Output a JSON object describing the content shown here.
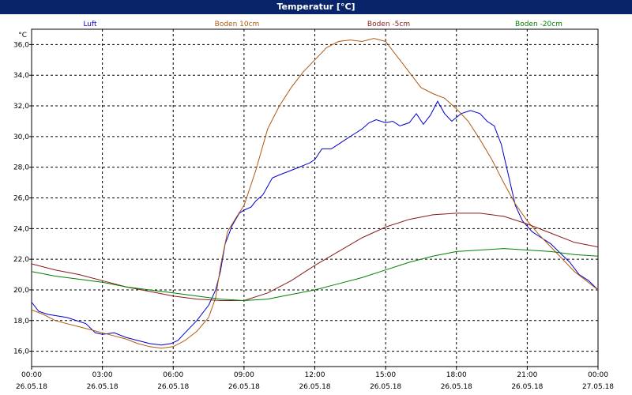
{
  "window": {
    "title": "Temperatur [°C]"
  },
  "chart_data": {
    "type": "line",
    "title": "Temperatur [°C]",
    "yunit": "°C",
    "ylim": [
      15,
      37
    ],
    "yticks": [
      16,
      18,
      20,
      22,
      24,
      26,
      28,
      30,
      32,
      34,
      36
    ],
    "ytick_labels": [
      "16,0",
      "18,0",
      "20,0",
      "22,0",
      "24,0",
      "26,0",
      "28,0",
      "30,0",
      "32,0",
      "34,0",
      "36,0"
    ],
    "xlim": [
      0,
      24
    ],
    "xticks": [
      0,
      3,
      6,
      9,
      12,
      15,
      18,
      21,
      24
    ],
    "xtick_labels": [
      [
        "00:00",
        "26.05.18"
      ],
      [
        "03:00",
        "26.05.18"
      ],
      [
        "06:00",
        "26.05.18"
      ],
      [
        "09:00",
        "26.05.18"
      ],
      [
        "12:00",
        "26.05.18"
      ],
      [
        "15:00",
        "26.05.18"
      ],
      [
        "18:00",
        "26.05.18"
      ],
      [
        "21:00",
        "26.05.18"
      ],
      [
        "00:00",
        "27.05.18"
      ]
    ],
    "grid": true,
    "series": [
      {
        "name": "Luft",
        "color": "#0000cc",
        "points": [
          [
            0,
            19.2
          ],
          [
            0.3,
            18.6
          ],
          [
            0.7,
            18.4
          ],
          [
            1.5,
            18.2
          ],
          [
            2.3,
            17.8
          ],
          [
            2.7,
            17.2
          ],
          [
            3.0,
            17.1
          ],
          [
            3.5,
            17.2
          ],
          [
            4.0,
            16.9
          ],
          [
            4.5,
            16.7
          ],
          [
            5.0,
            16.5
          ],
          [
            5.5,
            16.4
          ],
          [
            5.9,
            16.5
          ],
          [
            6.2,
            16.7
          ],
          [
            6.5,
            17.2
          ],
          [
            7.0,
            18.0
          ],
          [
            7.5,
            19.0
          ],
          [
            7.8,
            20.0
          ],
          [
            8.0,
            21.2
          ],
          [
            8.2,
            23.0
          ],
          [
            8.5,
            24.2
          ],
          [
            8.8,
            25.0
          ],
          [
            9.0,
            25.2
          ],
          [
            9.3,
            25.4
          ],
          [
            9.5,
            25.8
          ],
          [
            9.8,
            26.2
          ],
          [
            10.2,
            27.3
          ],
          [
            10.5,
            27.5
          ],
          [
            11.0,
            27.8
          ],
          [
            11.5,
            28.1
          ],
          [
            11.8,
            28.3
          ],
          [
            12.0,
            28.5
          ],
          [
            12.3,
            29.2
          ],
          [
            12.7,
            29.2
          ],
          [
            13.0,
            29.5
          ],
          [
            13.3,
            29.8
          ],
          [
            13.7,
            30.2
          ],
          [
            14.0,
            30.5
          ],
          [
            14.3,
            30.9
          ],
          [
            14.6,
            31.1
          ],
          [
            15.0,
            30.9
          ],
          [
            15.3,
            31.0
          ],
          [
            15.6,
            30.7
          ],
          [
            16.0,
            30.9
          ],
          [
            16.3,
            31.5
          ],
          [
            16.6,
            30.8
          ],
          [
            16.9,
            31.4
          ],
          [
            17.2,
            32.3
          ],
          [
            17.5,
            31.5
          ],
          [
            17.8,
            31.0
          ],
          [
            18.2,
            31.5
          ],
          [
            18.6,
            31.7
          ],
          [
            19.0,
            31.5
          ],
          [
            19.3,
            31.0
          ],
          [
            19.6,
            30.7
          ],
          [
            19.9,
            29.5
          ],
          [
            20.2,
            27.5
          ],
          [
            20.5,
            25.5
          ],
          [
            20.8,
            24.5
          ],
          [
            21.2,
            23.8
          ],
          [
            21.6,
            23.4
          ],
          [
            22.0,
            23.0
          ],
          [
            22.4,
            22.4
          ],
          [
            22.8,
            21.8
          ],
          [
            23.2,
            21.0
          ],
          [
            23.6,
            20.6
          ],
          [
            24.0,
            20.0
          ]
        ]
      },
      {
        "name": "Boden 10cm",
        "color": "#b05a10",
        "points": [
          [
            0,
            18.7
          ],
          [
            0.5,
            18.4
          ],
          [
            1.0,
            18.0
          ],
          [
            1.5,
            17.8
          ],
          [
            2.0,
            17.6
          ],
          [
            2.5,
            17.4
          ],
          [
            3.0,
            17.2
          ],
          [
            3.5,
            17.0
          ],
          [
            4.0,
            16.8
          ],
          [
            4.5,
            16.5
          ],
          [
            5.0,
            16.3
          ],
          [
            5.5,
            16.2
          ],
          [
            6.0,
            16.3
          ],
          [
            6.5,
            16.7
          ],
          [
            7.0,
            17.3
          ],
          [
            7.5,
            18.2
          ],
          [
            7.8,
            19.5
          ],
          [
            8.0,
            21.5
          ],
          [
            8.3,
            23.8
          ],
          [
            8.7,
            24.8
          ],
          [
            9.0,
            25.5
          ],
          [
            9.5,
            27.8
          ],
          [
            10.0,
            30.5
          ],
          [
            10.5,
            32.0
          ],
          [
            11.0,
            33.2
          ],
          [
            11.5,
            34.2
          ],
          [
            12.0,
            35.0
          ],
          [
            12.5,
            35.8
          ],
          [
            13.0,
            36.2
          ],
          [
            13.5,
            36.3
          ],
          [
            14.0,
            36.2
          ],
          [
            14.5,
            36.4
          ],
          [
            15.0,
            36.2
          ],
          [
            15.5,
            35.2
          ],
          [
            16.0,
            34.2
          ],
          [
            16.5,
            33.2
          ],
          [
            17.0,
            32.8
          ],
          [
            17.5,
            32.5
          ],
          [
            18.0,
            31.8
          ],
          [
            18.5,
            31.0
          ],
          [
            19.0,
            29.8
          ],
          [
            19.5,
            28.5
          ],
          [
            20.0,
            27.0
          ],
          [
            20.5,
            25.6
          ],
          [
            21.0,
            24.5
          ],
          [
            21.5,
            23.6
          ],
          [
            22.0,
            22.8
          ],
          [
            22.5,
            22.0
          ],
          [
            23.0,
            21.2
          ],
          [
            23.5,
            20.6
          ],
          [
            24.0,
            20.0
          ]
        ]
      },
      {
        "name": "Boden -5cm",
        "color": "#8b1a1a",
        "points": [
          [
            0,
            21.7
          ],
          [
            1.0,
            21.3
          ],
          [
            2.0,
            21.0
          ],
          [
            3.0,
            20.6
          ],
          [
            4.0,
            20.2
          ],
          [
            5.0,
            19.9
          ],
          [
            6.0,
            19.6
          ],
          [
            7.0,
            19.4
          ],
          [
            8.0,
            19.3
          ],
          [
            9.0,
            19.3
          ],
          [
            10.0,
            19.8
          ],
          [
            11.0,
            20.6
          ],
          [
            12.0,
            21.6
          ],
          [
            13.0,
            22.5
          ],
          [
            14.0,
            23.4
          ],
          [
            15.0,
            24.1
          ],
          [
            16.0,
            24.6
          ],
          [
            17.0,
            24.9
          ],
          [
            18.0,
            25.0
          ],
          [
            19.0,
            25.0
          ],
          [
            20.0,
            24.8
          ],
          [
            21.0,
            24.3
          ],
          [
            22.0,
            23.7
          ],
          [
            23.0,
            23.1
          ],
          [
            24.0,
            22.8
          ]
        ]
      },
      {
        "name": "Boden -20cm",
        "color": "#008000",
        "points": [
          [
            0,
            21.2
          ],
          [
            1.0,
            20.9
          ],
          [
            2.0,
            20.7
          ],
          [
            3.0,
            20.5
          ],
          [
            4.0,
            20.2
          ],
          [
            5.0,
            20.0
          ],
          [
            6.0,
            19.8
          ],
          [
            7.0,
            19.6
          ],
          [
            8.0,
            19.4
          ],
          [
            9.0,
            19.3
          ],
          [
            10.0,
            19.4
          ],
          [
            11.0,
            19.7
          ],
          [
            12.0,
            20.0
          ],
          [
            13.0,
            20.4
          ],
          [
            14.0,
            20.8
          ],
          [
            15.0,
            21.3
          ],
          [
            16.0,
            21.8
          ],
          [
            17.0,
            22.2
          ],
          [
            18.0,
            22.5
          ],
          [
            19.0,
            22.6
          ],
          [
            20.0,
            22.7
          ],
          [
            21.0,
            22.6
          ],
          [
            22.0,
            22.5
          ],
          [
            23.0,
            22.3
          ],
          [
            24.0,
            22.2
          ]
        ]
      }
    ]
  }
}
